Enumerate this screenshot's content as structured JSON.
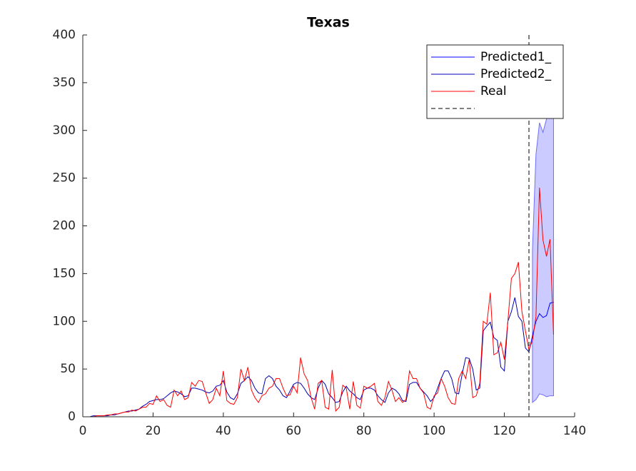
{
  "chart_data": {
    "type": "line",
    "title": "Texas",
    "xlim": [
      0,
      140
    ],
    "xticks": [
      0,
      20,
      40,
      60,
      80,
      100,
      120,
      140
    ],
    "ylim": [
      0,
      400
    ],
    "yticks": [
      0,
      50,
      100,
      150,
      200,
      250,
      300,
      350,
      400
    ],
    "legend_position": "upper right",
    "series": [
      {
        "name": "Predicted1_",
        "color": "#0000ff",
        "x": [
          127,
          128,
          129,
          130,
          131,
          132,
          133,
          134
        ],
        "values": [
          68,
          85,
          100,
          108,
          104,
          106,
          119,
          120
        ]
      },
      {
        "name": "Predicted2_",
        "color": "#0000b0",
        "x": [
          1,
          2,
          3,
          4,
          5,
          6,
          7,
          8,
          9,
          10,
          11,
          12,
          13,
          14,
          15,
          16,
          17,
          18,
          19,
          20,
          21,
          22,
          23,
          24,
          25,
          26,
          27,
          28,
          29,
          30,
          31,
          32,
          33,
          34,
          35,
          36,
          37,
          38,
          39,
          40,
          41,
          42,
          43,
          44,
          45,
          46,
          47,
          48,
          49,
          50,
          51,
          52,
          53,
          54,
          55,
          56,
          57,
          58,
          59,
          60,
          61,
          62,
          63,
          64,
          65,
          66,
          67,
          68,
          69,
          70,
          71,
          72,
          73,
          74,
          75,
          76,
          77,
          78,
          79,
          80,
          81,
          82,
          83,
          84,
          85,
          86,
          87,
          88,
          89,
          90,
          91,
          92,
          93,
          94,
          95,
          96,
          97,
          98,
          99,
          100,
          101,
          102,
          103,
          104,
          105,
          106,
          107,
          108,
          109,
          110,
          111,
          112,
          113,
          114,
          115,
          116,
          117,
          118,
          119,
          120,
          121,
          122,
          123,
          124,
          125,
          126,
          127
        ],
        "values": [
          0,
          0,
          1,
          1,
          1,
          1,
          1,
          2,
          2,
          3,
          4,
          5,
          6,
          6,
          7,
          8,
          11,
          13,
          16,
          17,
          18,
          18,
          19,
          22,
          25,
          27,
          26,
          24,
          21,
          22,
          30,
          30,
          29,
          28,
          26,
          25,
          27,
          32,
          33,
          38,
          26,
          20,
          18,
          24,
          35,
          38,
          42,
          38,
          30,
          25,
          24,
          40,
          43,
          40,
          32,
          28,
          22,
          20,
          27,
          34,
          36,
          35,
          30,
          24,
          20,
          18,
          30,
          38,
          34,
          24,
          20,
          15,
          16,
          26,
          32,
          27,
          24,
          20,
          18,
          28,
          30,
          30,
          28,
          22,
          18,
          15,
          25,
          30,
          28,
          24,
          17,
          16,
          34,
          36,
          36,
          30,
          26,
          22,
          16,
          20,
          30,
          40,
          48,
          48,
          40,
          25,
          24,
          45,
          62,
          61,
          50,
          28,
          30,
          90,
          95,
          99,
          83,
          80,
          52,
          48,
          100,
          110,
          125,
          105,
          100,
          72,
          68
        ]
      },
      {
        "name": "Real",
        "color": "#ff0000",
        "x": [
          1,
          2,
          3,
          4,
          5,
          6,
          7,
          8,
          9,
          10,
          11,
          12,
          13,
          14,
          15,
          16,
          17,
          18,
          19,
          20,
          21,
          22,
          23,
          24,
          25,
          26,
          27,
          28,
          29,
          30,
          31,
          32,
          33,
          34,
          35,
          36,
          37,
          38,
          39,
          40,
          41,
          42,
          43,
          44,
          45,
          46,
          47,
          48,
          49,
          50,
          51,
          52,
          53,
          54,
          55,
          56,
          57,
          58,
          59,
          60,
          61,
          62,
          63,
          64,
          65,
          66,
          67,
          68,
          69,
          70,
          71,
          72,
          73,
          74,
          75,
          76,
          77,
          78,
          79,
          80,
          81,
          82,
          83,
          84,
          85,
          86,
          87,
          88,
          89,
          90,
          91,
          92,
          93,
          94,
          95,
          96,
          97,
          98,
          99,
          100,
          101,
          102,
          103,
          104,
          105,
          106,
          107,
          108,
          109,
          110,
          111,
          112,
          113,
          114,
          115,
          116,
          117,
          118,
          119,
          120,
          121,
          122,
          123,
          124,
          125,
          126,
          127,
          128,
          129,
          130,
          131,
          132,
          133,
          134
        ],
        "values": [
          0,
          0,
          0,
          1,
          1,
          1,
          2,
          2,
          3,
          3,
          4,
          5,
          5,
          7,
          6,
          8,
          10,
          10,
          14,
          13,
          22,
          16,
          18,
          12,
          10,
          28,
          22,
          27,
          18,
          20,
          36,
          32,
          38,
          37,
          25,
          14,
          18,
          30,
          22,
          48,
          17,
          14,
          13,
          20,
          50,
          38,
          52,
          28,
          20,
          15,
          22,
          24,
          30,
          32,
          40,
          40,
          30,
          22,
          23,
          32,
          25,
          62,
          45,
          38,
          20,
          8,
          35,
          38,
          10,
          8,
          49,
          6,
          10,
          33,
          30,
          8,
          37,
          12,
          9,
          32,
          30,
          32,
          35,
          16,
          12,
          20,
          37,
          28,
          16,
          20,
          15,
          18,
          48,
          40,
          40,
          30,
          25,
          10,
          8,
          22,
          25,
          40,
          32,
          20,
          14,
          13,
          40,
          48,
          40,
          60,
          20,
          22,
          35,
          100,
          97,
          130,
          65,
          67,
          78,
          60,
          100,
          145,
          150,
          162,
          110,
          90,
          70,
          80,
          105,
          240,
          185,
          168,
          186,
          86
        ]
      },
      {
        "xline": 127,
        "color": "#000000",
        "dash": true
      }
    ],
    "band": {
      "color": "#c8c8ff",
      "x": [
        128,
        129,
        130,
        131,
        132,
        133,
        134
      ],
      "upper": [
        175,
        275,
        308,
        298,
        312,
        320,
        330
      ],
      "lower": [
        15,
        18,
        24,
        23,
        21,
        22,
        22
      ]
    }
  }
}
